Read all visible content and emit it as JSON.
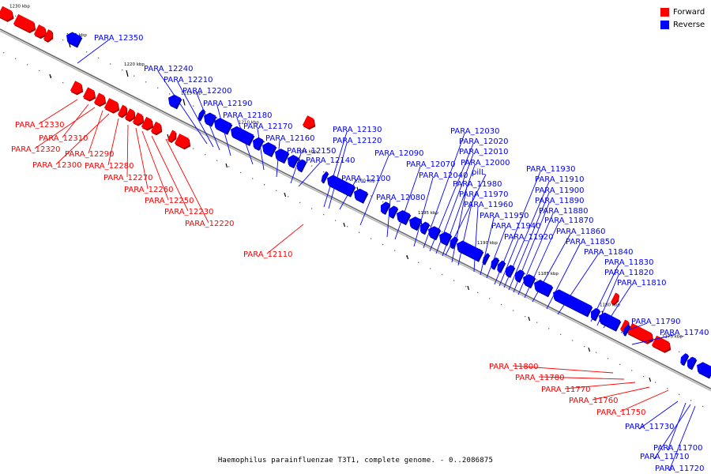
{
  "caption": "Haemophilus parainfluenzae T3T1, complete genome. - 0..2086875",
  "legend": [
    {
      "label": "Forward",
      "color": "#ff0000"
    },
    {
      "label": "Reverse",
      "color": "#0000ff"
    }
  ],
  "colors": {
    "forward": "#ff0000",
    "reverse": "#0000ff",
    "backbone": "#888888"
  },
  "ticks": [
    "1230 kbp",
    "1225 kbp",
    "1220 kbp",
    "1215 kbp",
    "1210 kbp",
    "1205 kbp",
    "1200 kbp",
    "1195 kbp",
    "1190 kbp",
    "1185 kbp",
    "1180 kbp",
    "1175 kbp"
  ],
  "reverse_labels": [
    "PARA_12350",
    "PARA_12240",
    "PARA_12210",
    "PARA_12200",
    "PARA_12190",
    "PARA_12180",
    "PARA_12170",
    "PARA_12160",
    "PARA_12150",
    "PARA_12140",
    "PARA_12130",
    "PARA_12120",
    "PARA_12100",
    "PARA_12090",
    "PARA_12080",
    "PARA_12070",
    "PARA_12040",
    "pilL",
    "PARA_12030",
    "PARA_12020",
    "PARA_12010",
    "PARA_12000",
    "PARA_11980",
    "PARA_11970",
    "PARA_11960",
    "PARA_11950",
    "PARA_11940",
    "PARA_11930",
    "PARA_11920",
    "PARA_11910",
    "PARA_11900",
    "PARA_11890",
    "PARA_11880",
    "PARA_11870",
    "PARA_11860",
    "PARA_11850",
    "PARA_11840",
    "PARA_11830",
    "PARA_11820",
    "PARA_11810",
    "PARA_11790",
    "PARA_11740",
    "PARA_11730",
    "PARA_11700",
    "PARA_11710",
    "PARA_11720"
  ],
  "forward_labels": [
    "PARA_12330",
    "PARA_12310",
    "PARA_12320",
    "PARA_12290",
    "PARA_12300",
    "PARA_12280",
    "PARA_12270",
    "PARA_12260",
    "PARA_12250",
    "PARA_12230",
    "PARA_12220",
    "PARA_12110",
    "PARA_11800",
    "PARA_11780",
    "PARA_11770",
    "PARA_11760",
    "PARA_11750"
  ]
}
